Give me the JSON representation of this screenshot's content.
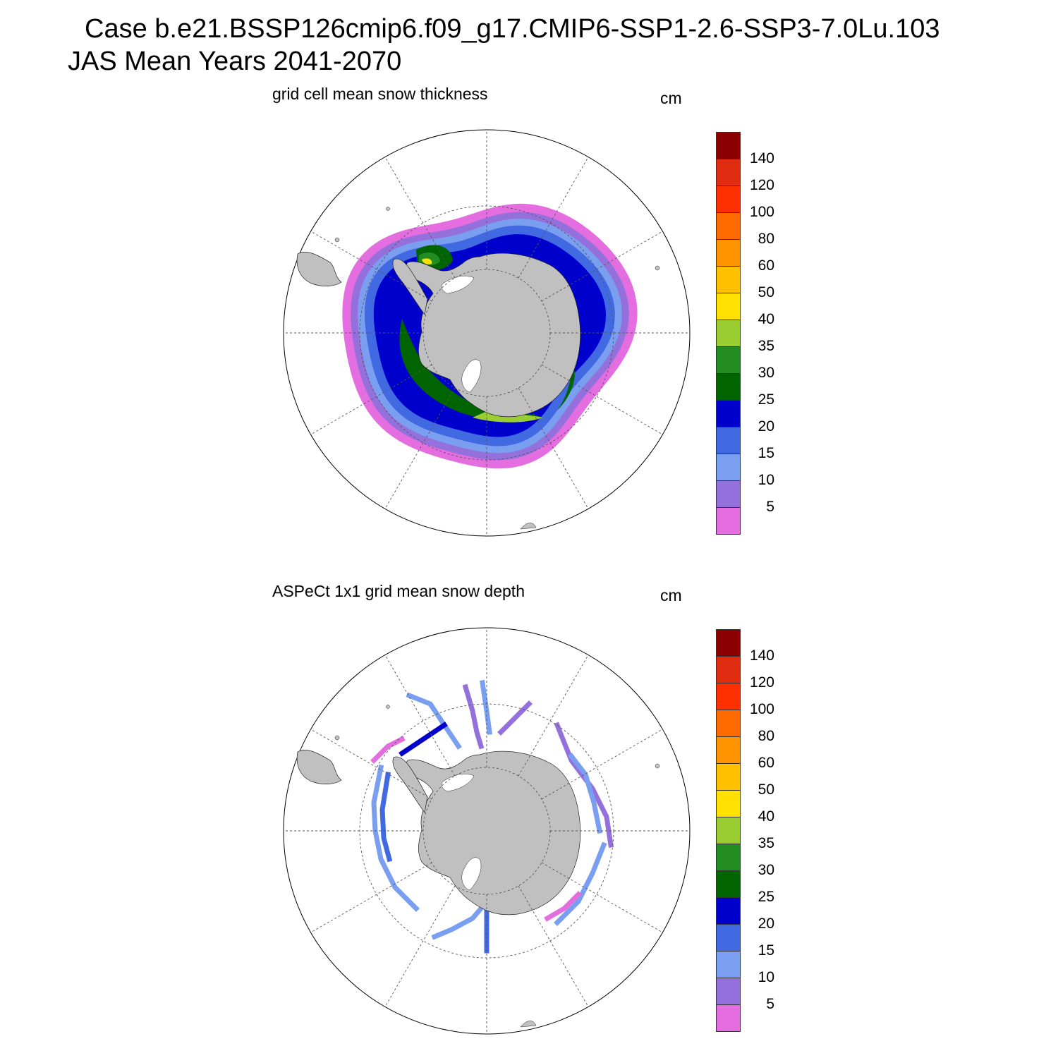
{
  "header": {
    "case_line": "Case b.e21.BSSP126cmip6.f09_g17.CMIP6-SSP1-2.6-SSP3-7.0Lu.103",
    "period_line": "JAS Mean   Years 2041-2070"
  },
  "panels": [
    {
      "title": "grid cell mean snow thickness",
      "units": "cm",
      "kind": "model"
    },
    {
      "title": "ASPeCt 1x1 grid mean snow depth",
      "units": "cm",
      "kind": "obs"
    }
  ],
  "colorbar": {
    "labels": [
      "5",
      "10",
      "15",
      "20",
      "25",
      "30",
      "35",
      "40",
      "50",
      "60",
      "80",
      "100",
      "120",
      "140"
    ],
    "colors": [
      "#e46ee0",
      "#9370db",
      "#7b9ff0",
      "#4169e1",
      "#0000cd",
      "#006400",
      "#228b22",
      "#9acd32",
      "#ffe000",
      "#ffc000",
      "#ff9400",
      "#ff6a00",
      "#ff3000",
      "#e02c10",
      "#8b0000"
    ]
  },
  "map_colors": {
    "land": "#c0c0c0",
    "ice_shelf": "#ffffff",
    "grid": "#555555"
  }
}
